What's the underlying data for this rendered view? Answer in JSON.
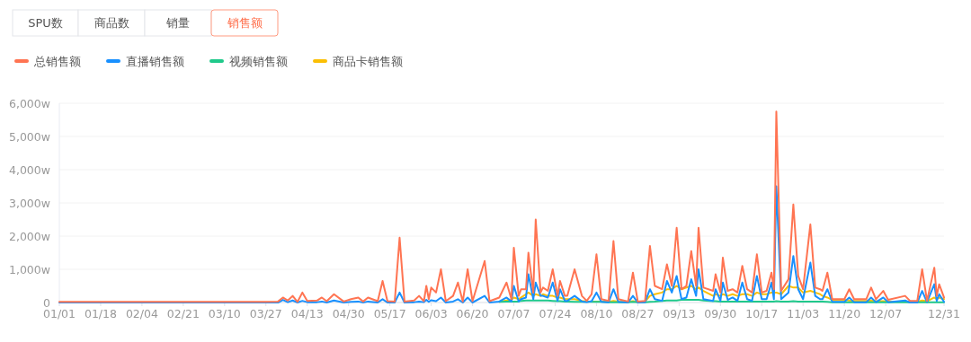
{
  "chart_data": {
    "type": "line",
    "legend": "top left",
    "grid": "y",
    "marker": "none",
    "line_style": "solid",
    "annotations": [
      "SPU数",
      "商品数",
      "销量",
      "销售额"
    ],
    "x": [
      "--01-01",
      "--03-01",
      "--03-27",
      "--04-01",
      "--04-03",
      "--04-05",
      "--04-07",
      "--04-09",
      "--04-11",
      "--04-13",
      "--04-17",
      "--04-19",
      "--04-21",
      "--04-24",
      "--04-28",
      "--05-01",
      "--05-04",
      "--05-06",
      "--05-08",
      "--05-12",
      "--05-14",
      "--05-16",
      "--05-19",
      "--05-21",
      "--05-23",
      "--05-27",
      "--05-29",
      "--05-31",
      "--06-01",
      "--06-02",
      "--06-03",
      "--06-05",
      "--06-07",
      "--06-09",
      "--06-12",
      "--06-14",
      "--06-16",
      "--06-18",
      "--06-20",
      "--06-25",
      "--06-27",
      "--07-01",
      "--07-04",
      "--07-06",
      "--07-07",
      "--07-09",
      "--07-10",
      "--07-12",
      "--07-13",
      "--07-15",
      "--07-16",
      "--07-18",
      "--07-19",
      "--07-21",
      "--07-23",
      "--07-25",
      "--07-26",
      "--07-28",
      "--07-29",
      "--08-01",
      "--08-04",
      "--08-06",
      "--08-08",
      "--08-10",
      "--08-12",
      "--08-15",
      "--08-17",
      "--08-19",
      "--08-23",
      "--08-25",
      "--08-27",
      "--08-30",
      "--09-01",
      "--09-03",
      "--09-06",
      "--09-08",
      "--09-10",
      "--09-12",
      "--09-14",
      "--09-16",
      "--09-18",
      "--09-20",
      "--09-21",
      "--09-23",
      "--09-27",
      "--09-28",
      "--09-30",
      "--10-01",
      "--10-03",
      "--10-05",
      "--10-07",
      "--10-09",
      "--10-11",
      "--10-13",
      "--10-15",
      "--10-17",
      "--10-19",
      "--10-21",
      "--10-22",
      "--10-23",
      "--10-25",
      "--10-28",
      "--10-30",
      "--11-01",
      "--11-03",
      "--11-06",
      "--11-08",
      "--11-10",
      "--11-11",
      "--11-13",
      "--11-15",
      "--11-20",
      "--11-22",
      "--11-24",
      "--11-29",
      "--12-01",
      "--12-03",
      "--12-06",
      "--12-08",
      "--12-15",
      "--12-17",
      "--12-20",
      "--12-22",
      "--12-24",
      "--12-27",
      "--12-28",
      "--12-29",
      "--12-31"
    ],
    "series": [
      {
        "name": "总销售额",
        "color": "#ff7452",
        "values": [
          20,
          20,
          20,
          30,
          150,
          60,
          200,
          20,
          300,
          50,
          60,
          150,
          40,
          250,
          30,
          100,
          150,
          30,
          150,
          40,
          650,
          40,
          30,
          1950,
          30,
          60,
          200,
          40,
          500,
          100,
          450,
          300,
          1000,
          40,
          200,
          600,
          30,
          1000,
          40,
          1250,
          40,
          150,
          600,
          100,
          1650,
          200,
          400,
          400,
          1500,
          300,
          2500,
          300,
          450,
          350,
          1000,
          200,
          650,
          200,
          200,
          1000,
          200,
          50,
          250,
          1450,
          100,
          50,
          1850,
          100,
          30,
          900,
          30,
          50,
          1700,
          500,
          400,
          1150,
          500,
          2250,
          400,
          500,
          1550,
          500,
          2250,
          450,
          350,
          850,
          300,
          1350,
          350,
          400,
          300,
          1100,
          400,
          300,
          1450,
          300,
          350,
          900,
          400,
          5750,
          350,
          700,
          2950,
          800,
          400,
          2350,
          450,
          400,
          350,
          900,
          100,
          100,
          400,
          100,
          100,
          450,
          100,
          350,
          80,
          200,
          50,
          50,
          1000,
          50,
          1050,
          200,
          550,
          150
        ]
      },
      {
        "name": "直播销售额",
        "color": "#1890ff",
        "values": [
          0,
          0,
          0,
          0,
          80,
          10,
          60,
          0,
          50,
          10,
          10,
          30,
          0,
          60,
          0,
          20,
          30,
          0,
          30,
          0,
          100,
          0,
          0,
          300,
          0,
          10,
          30,
          10,
          80,
          20,
          70,
          40,
          150,
          0,
          30,
          100,
          0,
          150,
          0,
          200,
          0,
          30,
          150,
          30,
          500,
          30,
          100,
          150,
          850,
          100,
          600,
          200,
          200,
          150,
          600,
          50,
          400,
          50,
          50,
          200,
          30,
          10,
          40,
          300,
          20,
          10,
          400,
          20,
          0,
          200,
          0,
          10,
          400,
          100,
          50,
          650,
          300,
          800,
          100,
          150,
          700,
          200,
          1000,
          100,
          50,
          400,
          50,
          600,
          80,
          150,
          50,
          600,
          100,
          50,
          800,
          100,
          100,
          600,
          100,
          3500,
          100,
          300,
          1400,
          400,
          100,
          1200,
          200,
          100,
          100,
          400,
          20,
          20,
          150,
          10,
          10,
          150,
          10,
          150,
          10,
          60,
          0,
          0,
          350,
          10,
          550,
          50,
          250,
          20
        ]
      },
      {
        "name": "视频销售额",
        "color": "#20c98b",
        "values": [
          null,
          null,
          null,
          null,
          null,
          null,
          null,
          null,
          null,
          null,
          null,
          null,
          null,
          null,
          null,
          null,
          null,
          null,
          null,
          null,
          null,
          null,
          null,
          null,
          null,
          null,
          null,
          null,
          null,
          null,
          null,
          null,
          null,
          null,
          null,
          null,
          null,
          null,
          null,
          null,
          null,
          20,
          30,
          30,
          30,
          30,
          50,
          60,
          60,
          60,
          60,
          60,
          60,
          60,
          50,
          40,
          40,
          30,
          30,
          20,
          20,
          20,
          20,
          20,
          20,
          10,
          10,
          10,
          10,
          20,
          10,
          10,
          20,
          30,
          50,
          60,
          60,
          60,
          80,
          80,
          80,
          80,
          80,
          60,
          40,
          40,
          30,
          30,
          30,
          30,
          30,
          30,
          30,
          30,
          30,
          30,
          30,
          30,
          30,
          40,
          30,
          30,
          40,
          30,
          30,
          30,
          30,
          30,
          30,
          20,
          10,
          10,
          10,
          10,
          10,
          10,
          10,
          10,
          10,
          10,
          10,
          10,
          10,
          10,
          10,
          10,
          10,
          10
        ]
      },
      {
        "name": "商品卡销售额",
        "color": "#fbbf04",
        "values": [
          null,
          null,
          null,
          null,
          null,
          null,
          null,
          null,
          null,
          null,
          null,
          null,
          null,
          null,
          null,
          null,
          null,
          null,
          null,
          null,
          null,
          null,
          null,
          null,
          null,
          null,
          null,
          null,
          null,
          null,
          null,
          null,
          null,
          null,
          null,
          null,
          null,
          null,
          null,
          null,
          null,
          20,
          60,
          80,
          150,
          100,
          150,
          250,
          300,
          200,
          250,
          200,
          250,
          200,
          200,
          150,
          150,
          100,
          100,
          100,
          50,
          30,
          30,
          30,
          30,
          20,
          50,
          30,
          20,
          40,
          20,
          30,
          200,
          250,
          300,
          400,
          400,
          500,
          400,
          450,
          500,
          400,
          450,
          350,
          200,
          250,
          200,
          250,
          200,
          250,
          200,
          250,
          250,
          200,
          300,
          250,
          250,
          300,
          300,
          300,
          250,
          500,
          450,
          450,
          300,
          350,
          300,
          250,
          200,
          150,
          80,
          80,
          60,
          50,
          50,
          60,
          40,
          40,
          30,
          30,
          20,
          20,
          60,
          40,
          150,
          100,
          150,
          100
        ]
      }
    ],
    "xlim": [
      "--01-01",
      "--12-31"
    ],
    "xticks": [
      {
        "value": "--01-01",
        "label": "01/01"
      },
      {
        "value": "--01-18",
        "label": "01/18"
      },
      {
        "value": "--02-04",
        "label": "02/04"
      },
      {
        "value": "--02-21",
        "label": "02/21"
      },
      {
        "value": "--03-10",
        "label": "03/10"
      },
      {
        "value": "--03-27",
        "label": "03/27"
      },
      {
        "value": "--04-13",
        "label": "04/13"
      },
      {
        "value": "--04-30",
        "label": "04/30"
      },
      {
        "value": "--05-17",
        "label": "05/17"
      },
      {
        "value": "--06-03",
        "label": "06/03"
      },
      {
        "value": "--06-20",
        "label": "06/20"
      },
      {
        "value": "--07-07",
        "label": "07/07"
      },
      {
        "value": "--07-24",
        "label": "07/24"
      },
      {
        "value": "--08-10",
        "label": "08/10"
      },
      {
        "value": "--08-27",
        "label": "08/27"
      },
      {
        "value": "--09-13",
        "label": "09/13"
      },
      {
        "value": "--09-30",
        "label": "09/30"
      },
      {
        "value": "--10-17",
        "label": "10/17"
      },
      {
        "value": "--11-03",
        "label": "11/03"
      },
      {
        "value": "--11-20",
        "label": "11/20"
      },
      {
        "value": "--12-07",
        "label": "12/07"
      },
      {
        "value": "--12-31",
        "label": "12/31"
      }
    ],
    "ylim": [
      0,
      6000
    ],
    "yticks": [
      0,
      {
        "value": 1000,
        "label": "1,000w"
      },
      {
        "value": 2000,
        "label": "2,000w"
      },
      {
        "value": 3000,
        "label": "3,000w"
      },
      {
        "value": 4000,
        "label": "4,000w"
      },
      {
        "value": 5000,
        "label": "5,000w"
      },
      {
        "value": 6000,
        "label": "6,000w"
      }
    ]
  }
}
